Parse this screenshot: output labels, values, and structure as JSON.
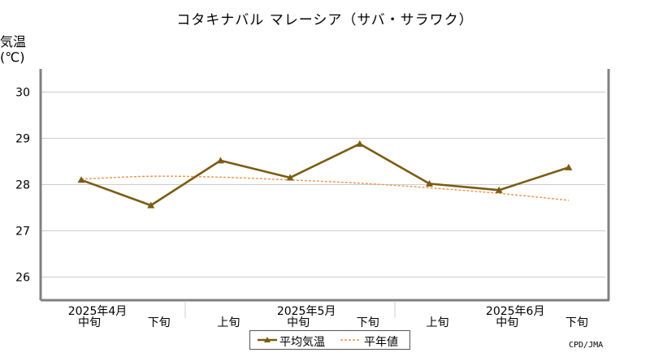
{
  "title": "コタキナバル マレーシア（サバ・サラワク）",
  "ylabel_line1": "気温",
  "ylabel_line2": "(℃)",
  "credit": "CPD/JMA",
  "legend": {
    "mean_label": "平均気温",
    "normal_label": "平年値"
  },
  "colors": {
    "mean": "#7a5c12",
    "normal": "#f0904a",
    "grid": "#cccccc",
    "frame": "#808080"
  },
  "chart_data": {
    "type": "line",
    "categories": [
      "中旬",
      "下旬",
      "上旬",
      "中旬",
      "下旬",
      "上旬",
      "中旬",
      "下旬"
    ],
    "month_labels": [
      {
        "label": "2025年4月",
        "index": 0
      },
      {
        "label": "2025年5月",
        "index": 3
      },
      {
        "label": "2025年6月",
        "index": 6
      }
    ],
    "ylim": [
      25.5,
      30.5
    ],
    "yticks": [
      26,
      27,
      28,
      29,
      30
    ],
    "series": [
      {
        "name": "平均気温",
        "values": [
          28.1,
          27.55,
          28.52,
          28.15,
          28.88,
          28.02,
          27.88,
          28.37
        ]
      },
      {
        "name": "平年値",
        "values": [
          28.12,
          28.18,
          28.16,
          28.1,
          28.03,
          27.93,
          27.81,
          27.66
        ]
      }
    ]
  }
}
